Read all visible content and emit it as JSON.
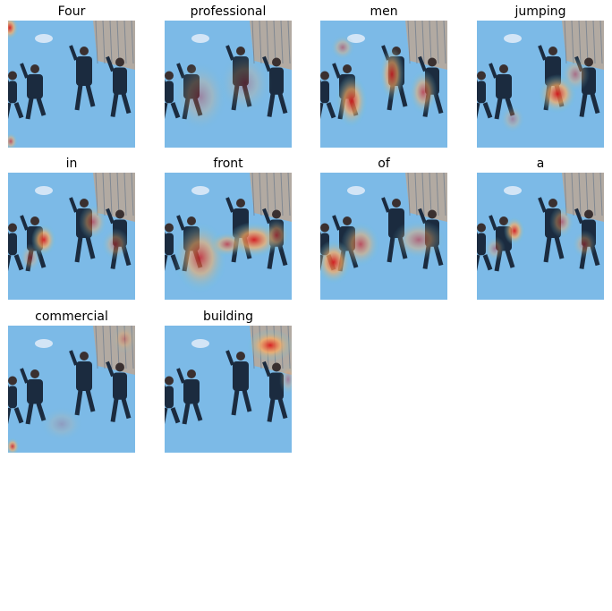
{
  "panels": [
    {
      "word": "Four"
    },
    {
      "word": "professional"
    },
    {
      "word": "men"
    },
    {
      "word": "jumping"
    },
    {
      "word": "in"
    },
    {
      "word": "front"
    },
    {
      "word": "of"
    },
    {
      "word": "a"
    },
    {
      "word": "commercial"
    },
    {
      "word": "building"
    }
  ],
  "colors": {
    "sky": "#8fb4e6",
    "suit": "#1b2b3f",
    "heat_hot": "#d7191c",
    "heat_warm": "#fdae61",
    "heat_cool": "#58c7e8"
  }
}
